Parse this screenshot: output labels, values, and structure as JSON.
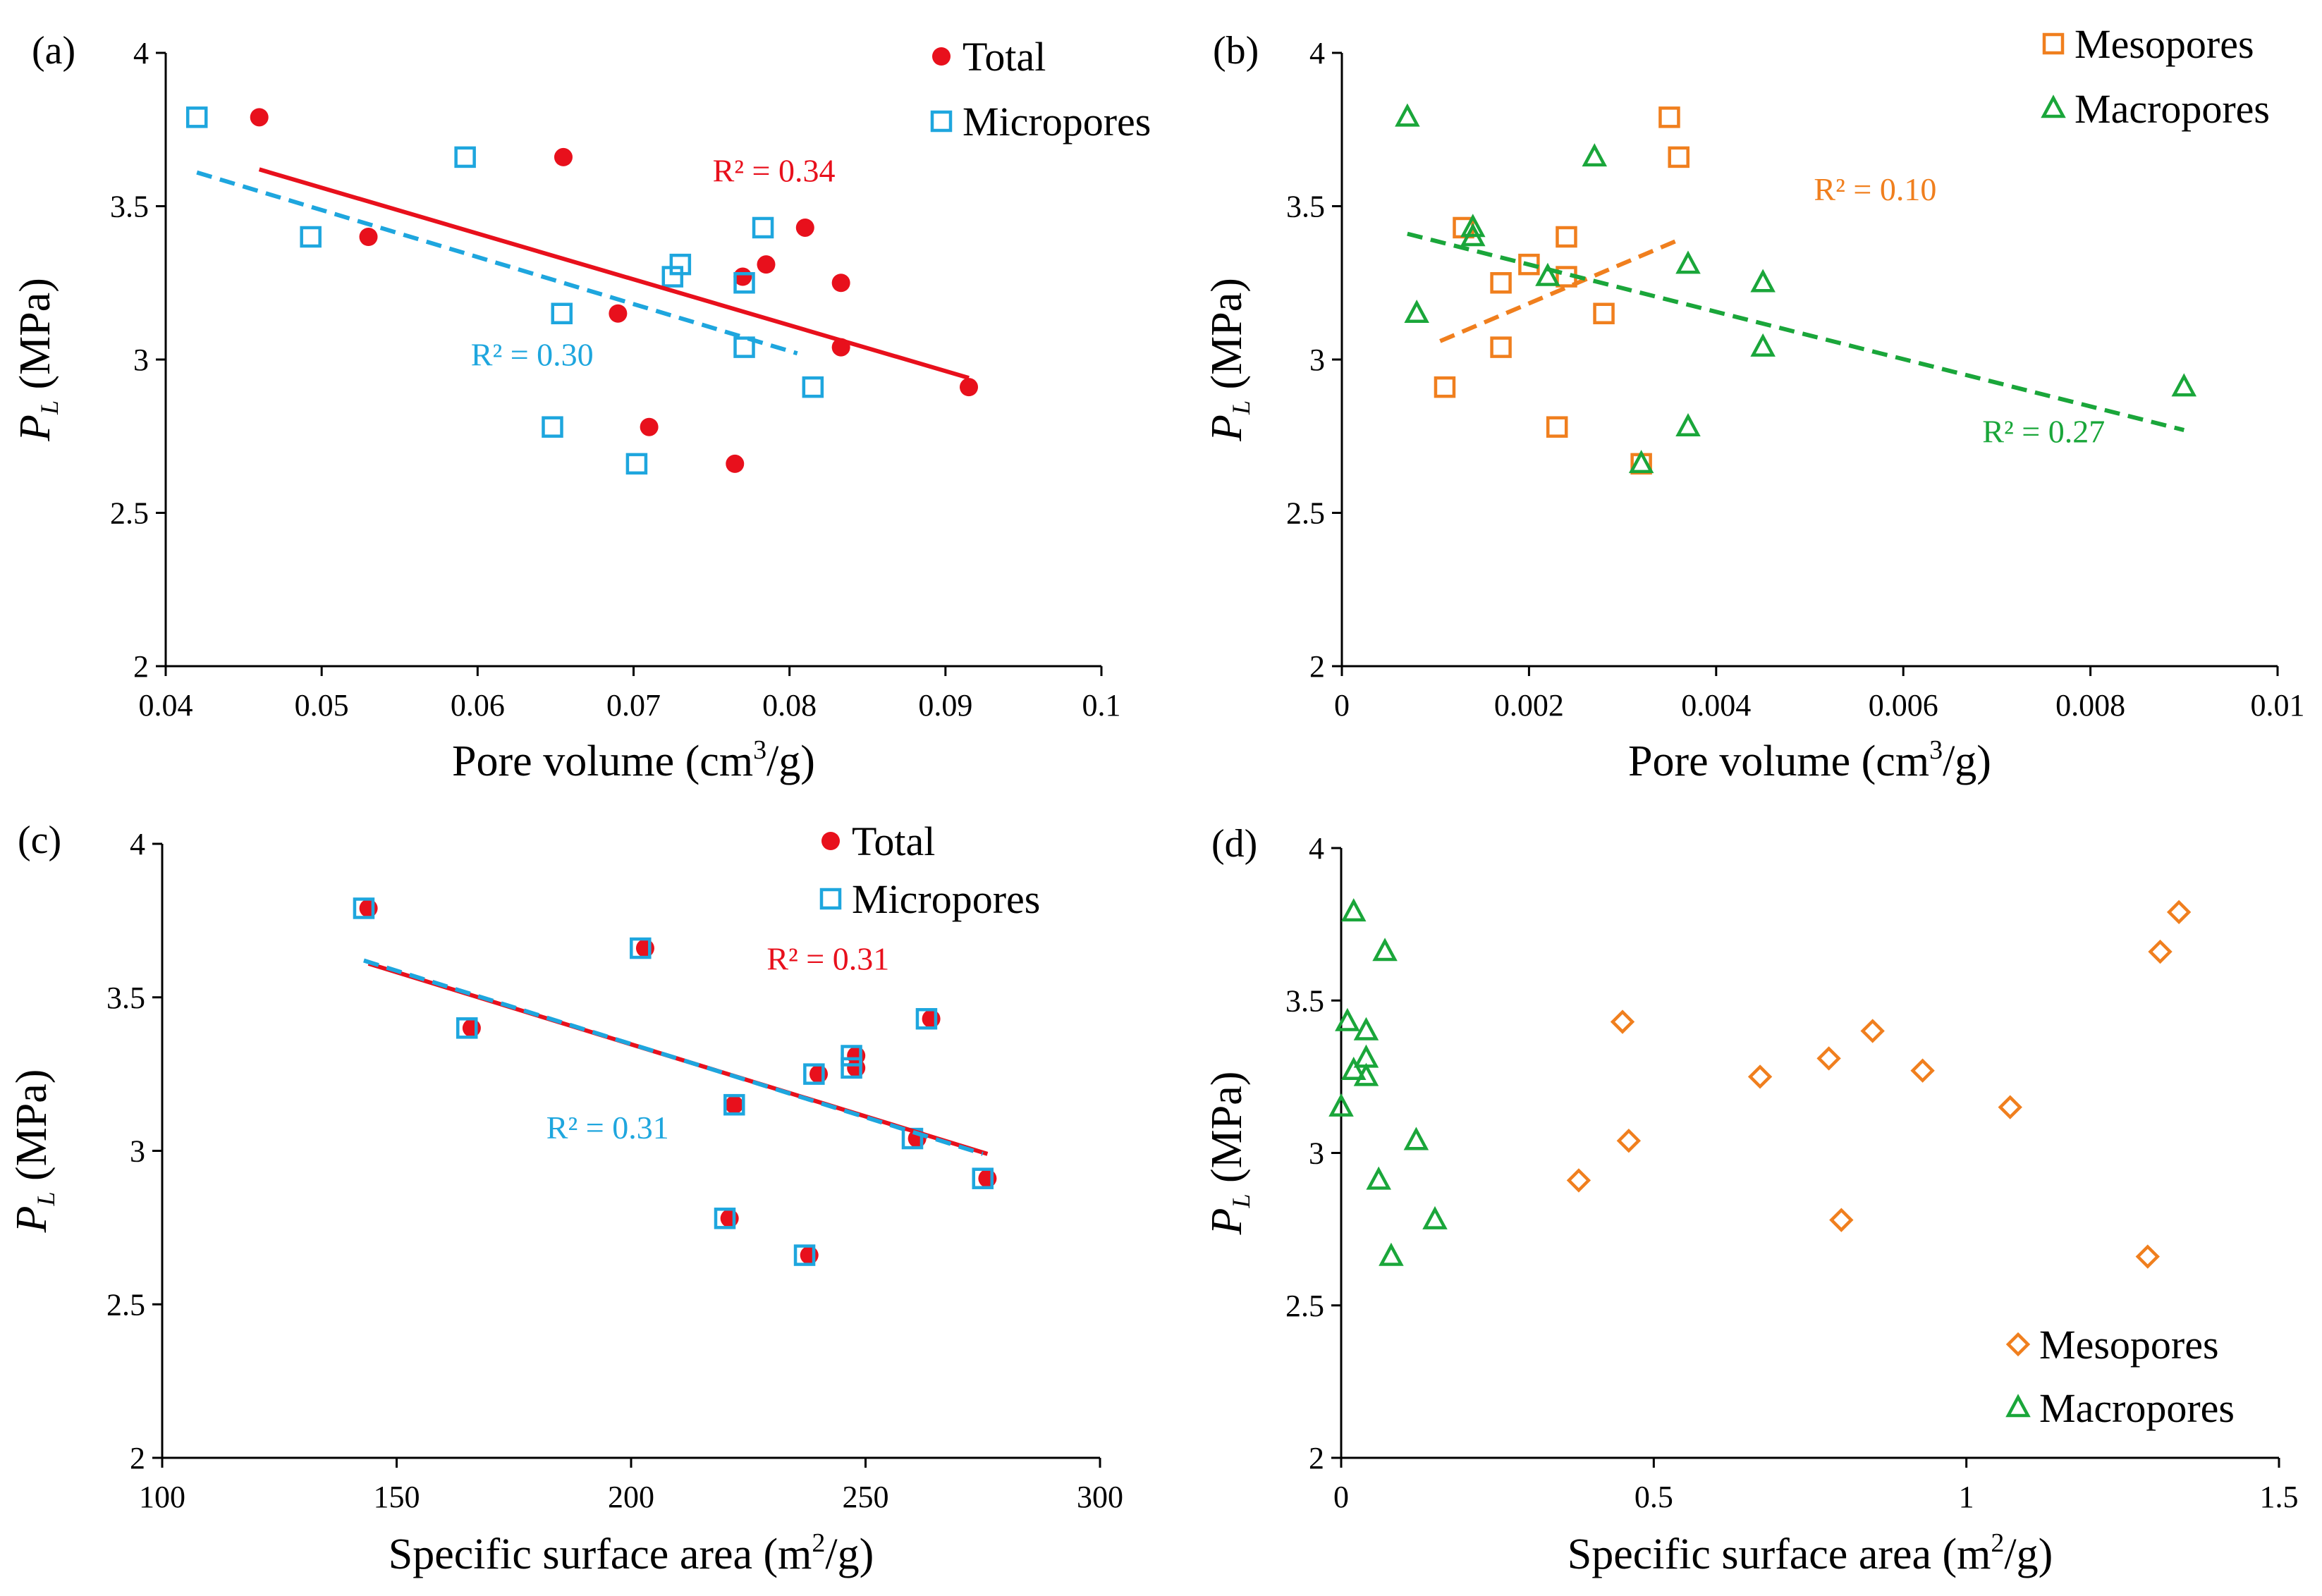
{
  "colors": {
    "total": "#e8101c",
    "micropores": "#1ea6de",
    "mesopores": "#f07f1e",
    "macropores": "#1aa63a"
  },
  "chart_data": [
    {
      "panel": "(a)",
      "type": "scatter",
      "xlabel_pre": "Pore volume (cm",
      "xlabel_sup": "3",
      "xlabel_post": "/g)",
      "ylabel_main": "P",
      "ylabel_sub": "L",
      "ylabel_unit": " (MPa)",
      "xlim": [
        0.04,
        0.1
      ],
      "ylim": [
        2,
        4
      ],
      "xticks": [
        0.04,
        0.05,
        0.06,
        0.07,
        0.08,
        0.09,
        0.1
      ],
      "xtick_labels": [
        "0.04",
        "0.05",
        "0.06",
        "0.07",
        "0.08",
        "0.09",
        "0.1"
      ],
      "yticks": [
        2,
        2.5,
        3,
        3.5,
        4
      ],
      "ytick_labels": [
        "2",
        "2.5",
        "3",
        "3.5",
        "4"
      ],
      "legend_position": "top-right",
      "series": [
        {
          "name": "Total",
          "marker": "circle",
          "color_key": "total",
          "points": [
            [
              0.046,
              3.79
            ],
            [
              0.053,
              3.4
            ],
            [
              0.0655,
              3.66
            ],
            [
              0.069,
              3.15
            ],
            [
              0.071,
              2.78
            ],
            [
              0.0765,
              2.66
            ],
            [
              0.077,
              3.27
            ],
            [
              0.0785,
              3.31
            ],
            [
              0.081,
              3.43
            ],
            [
              0.0833,
              3.25
            ],
            [
              0.0833,
              3.04
            ],
            [
              0.0915,
              2.91
            ]
          ],
          "trend": {
            "x": [
              0.046,
              0.0915
            ],
            "y": [
              3.62,
              2.94
            ],
            "dash": false,
            "r2": "R² = 0.34",
            "r2_at": [
              0.079,
              3.58
            ]
          }
        },
        {
          "name": "Micropores",
          "marker": "square",
          "color_key": "micropores",
          "points": [
            [
              0.042,
              3.79
            ],
            [
              0.0493,
              3.4
            ],
            [
              0.0592,
              3.66
            ],
            [
              0.0654,
              3.15
            ],
            [
              0.0648,
              2.78
            ],
            [
              0.0702,
              2.66
            ],
            [
              0.0725,
              3.27
            ],
            [
              0.073,
              3.31
            ],
            [
              0.0771,
              3.25
            ],
            [
              0.0771,
              3.04
            ],
            [
              0.0783,
              3.43
            ],
            [
              0.0815,
              2.91
            ]
          ],
          "trend": {
            "x": [
              0.042,
              0.0805
            ],
            "y": [
              3.61,
              3.02
            ],
            "dash": true,
            "r2": "R² = 0.30",
            "r2_at": [
              0.0635,
              2.98
            ]
          }
        }
      ]
    },
    {
      "panel": "(b)",
      "type": "scatter",
      "xlabel_pre": "Pore volume (cm",
      "xlabel_sup": "3",
      "xlabel_post": "/g)",
      "ylabel_main": "P",
      "ylabel_sub": "L",
      "ylabel_unit": " (MPa)",
      "xlim": [
        0,
        0.01
      ],
      "ylim": [
        2,
        4
      ],
      "xticks": [
        0,
        0.002,
        0.004,
        0.006,
        0.008,
        0.01
      ],
      "xtick_labels": [
        "0",
        "0.002",
        "0.004",
        "0.006",
        "0.008",
        "0.01"
      ],
      "yticks": [
        2,
        2.5,
        3,
        3.5,
        4
      ],
      "ytick_labels": [
        "2",
        "2.5",
        "3",
        "3.5",
        "4"
      ],
      "legend_position": "top-right",
      "series": [
        {
          "name": "Mesopores",
          "marker": "square",
          "color_key": "mesopores",
          "points": [
            [
              0.0011,
              2.91
            ],
            [
              0.0013,
              3.43
            ],
            [
              0.0017,
              3.04
            ],
            [
              0.0017,
              3.25
            ],
            [
              0.002,
              3.31
            ],
            [
              0.0023,
              2.78
            ],
            [
              0.0024,
              3.4
            ],
            [
              0.0024,
              3.27
            ],
            [
              0.0028,
              3.15
            ],
            [
              0.0032,
              2.66
            ],
            [
              0.0035,
              3.79
            ],
            [
              0.0036,
              3.66
            ]
          ],
          "trend": {
            "x": [
              0.00105,
              0.0036
            ],
            "y": [
              3.06,
              3.39
            ],
            "dash": true,
            "r2": "R² = 0.10",
            "r2_at": [
              0.0057,
              3.52
            ]
          }
        },
        {
          "name": "Macropores",
          "marker": "triangle",
          "color_key": "macropores",
          "points": [
            [
              0.0007,
              3.79
            ],
            [
              0.0008,
              3.15
            ],
            [
              0.0014,
              3.43
            ],
            [
              0.0014,
              3.4
            ],
            [
              0.0022,
              3.27
            ],
            [
              0.0027,
              3.66
            ],
            [
              0.0032,
              2.66
            ],
            [
              0.0037,
              3.31
            ],
            [
              0.0037,
              2.78
            ],
            [
              0.0045,
              3.25
            ],
            [
              0.0045,
              3.04
            ],
            [
              0.009,
              2.91
            ]
          ],
          "trend": {
            "x": [
              0.0007,
              0.009
            ],
            "y": [
              3.41,
              2.77
            ],
            "dash": true,
            "r2": "R² = 0.27",
            "r2_at": [
              0.0075,
              2.73
            ]
          }
        }
      ]
    },
    {
      "panel": "(c)",
      "type": "scatter",
      "xlabel_pre": "Specific surface area (m",
      "xlabel_sup": "2",
      "xlabel_post": "/g)",
      "ylabel_main": "P",
      "ylabel_sub": "L",
      "ylabel_unit": " (MPa)",
      "xlim": [
        100,
        300
      ],
      "ylim": [
        2,
        4
      ],
      "xticks": [
        100,
        150,
        200,
        250,
        300
      ],
      "xtick_labels": [
        "100",
        "150",
        "200",
        "250",
        "300"
      ],
      "yticks": [
        2,
        2.5,
        3,
        3.5,
        4
      ],
      "ytick_labels": [
        "2",
        "2.5",
        "3",
        "3.5",
        "4"
      ],
      "legend_position": "top-right",
      "series": [
        {
          "name": "Total",
          "marker": "circle",
          "color_key": "total",
          "points": [
            [
              144,
              3.79
            ],
            [
              166,
              3.4
            ],
            [
              203,
              3.66
            ],
            [
              222,
              3.15
            ],
            [
              221,
              2.78
            ],
            [
              238,
              2.66
            ],
            [
              240,
              3.25
            ],
            [
              248,
              3.31
            ],
            [
              248,
              3.27
            ],
            [
              261,
              3.04
            ],
            [
              264,
              3.43
            ],
            [
              276,
              2.91
            ]
          ],
          "trend": {
            "x": [
              144,
              276
            ],
            "y": [
              3.61,
              2.99
            ],
            "dash": false,
            "r2": "R² = 0.31",
            "r2_at": [
              242,
              3.59
            ]
          }
        },
        {
          "name": "Micropores",
          "marker": "square",
          "color_key": "micropores",
          "points": [
            [
              143,
              3.79
            ],
            [
              165,
              3.4
            ],
            [
              202,
              3.66
            ],
            [
              222,
              3.15
            ],
            [
              220,
              2.78
            ],
            [
              237,
              2.66
            ],
            [
              239,
              3.25
            ],
            [
              247,
              3.31
            ],
            [
              247,
              3.27
            ],
            [
              260,
              3.04
            ],
            [
              263,
              3.43
            ],
            [
              275,
              2.91
            ]
          ],
          "trend": {
            "x": [
              143,
              275
            ],
            "y": [
              3.62,
              2.99
            ],
            "dash": true,
            "r2": "R² = 0.31",
            "r2_at": [
              195,
              3.04
            ]
          }
        }
      ]
    },
    {
      "panel": "(d)",
      "type": "scatter",
      "xlabel_pre": "Specific surface area (m",
      "xlabel_sup": "2",
      "xlabel_post": "/g)",
      "ylabel_main": "P",
      "ylabel_sub": "L",
      "ylabel_unit": " (MPa)",
      "xlim": [
        0,
        1.5
      ],
      "ylim": [
        2,
        4
      ],
      "xticks": [
        0,
        0.5,
        1,
        1.5
      ],
      "xtick_labels": [
        "0",
        "0.5",
        "1",
        "1.5"
      ],
      "yticks": [
        2,
        2.5,
        3,
        3.5,
        4
      ],
      "ytick_labels": [
        "2",
        "2.5",
        "3",
        "3.5",
        "4"
      ],
      "legend_position": "bottom-right",
      "series": [
        {
          "name": "Mesopores",
          "marker": "diamond",
          "color_key": "mesopores",
          "points": [
            [
              0.38,
              2.91
            ],
            [
              0.45,
              3.43
            ],
            [
              0.46,
              3.04
            ],
            [
              0.67,
              3.25
            ],
            [
              0.78,
              3.31
            ],
            [
              0.8,
              2.78
            ],
            [
              0.85,
              3.4
            ],
            [
              0.93,
              3.27
            ],
            [
              1.07,
              3.15
            ],
            [
              1.29,
              2.66
            ],
            [
              1.31,
              3.66
            ],
            [
              1.34,
              3.79
            ]
          ],
          "trend": null
        },
        {
          "name": "Macropores",
          "marker": "triangle",
          "color_key": "macropores",
          "points": [
            [
              0.0,
              3.15
            ],
            [
              0.01,
              3.43
            ],
            [
              0.02,
              3.79
            ],
            [
              0.02,
              3.27
            ],
            [
              0.04,
              3.4
            ],
            [
              0.04,
              3.25
            ],
            [
              0.04,
              3.31
            ],
            [
              0.06,
              2.91
            ],
            [
              0.07,
              3.66
            ],
            [
              0.08,
              2.66
            ],
            [
              0.12,
              3.04
            ],
            [
              0.15,
              2.78
            ]
          ],
          "trend": null
        }
      ]
    }
  ]
}
